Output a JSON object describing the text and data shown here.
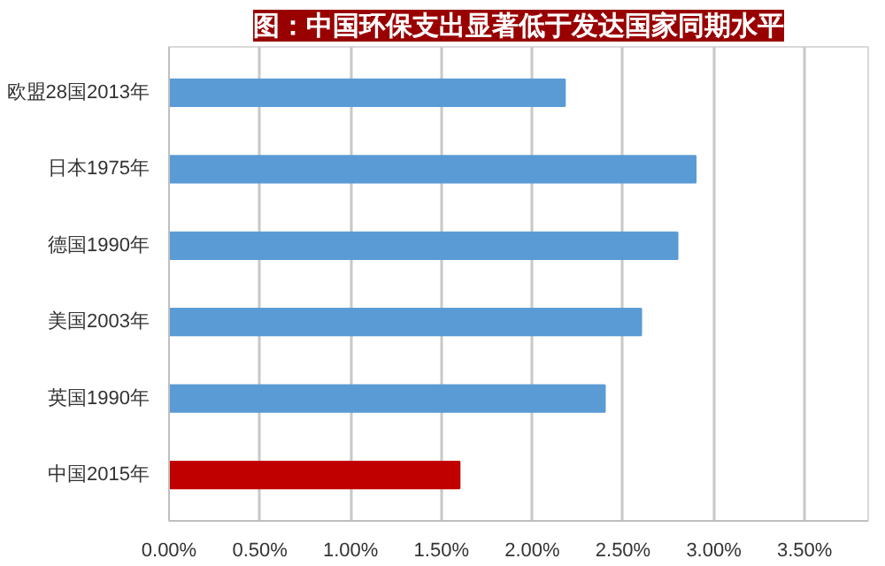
{
  "chart_data": {
    "type": "bar",
    "orientation": "horizontal",
    "title": "图：中国环保支出显著低于发达国家同期水平",
    "categories": [
      "欧盟28国2013年",
      "日本1975年",
      "德国1990年",
      "美国2003年",
      "英国1990年",
      "中国2015年"
    ],
    "values": [
      2.18,
      2.9,
      2.8,
      2.6,
      2.4,
      1.6
    ],
    "colors": [
      "#5b9bd5",
      "#5b9bd5",
      "#5b9bd5",
      "#5b9bd5",
      "#5b9bd5",
      "#c00000"
    ],
    "xlim": [
      0,
      3.85
    ],
    "xticks": [
      {
        "value": 0,
        "label": "0.00%"
      },
      {
        "value": 0.5,
        "label": "0.50%"
      },
      {
        "value": 1,
        "label": "1.00%"
      },
      {
        "value": 1.5,
        "label": "1.50%"
      },
      {
        "value": 2,
        "label": "2.00%"
      },
      {
        "value": 2.5,
        "label": "2.50%"
      },
      {
        "value": 3,
        "label": "3.00%"
      },
      {
        "value": 3.5,
        "label": "3.50%"
      }
    ],
    "grid": "x"
  }
}
